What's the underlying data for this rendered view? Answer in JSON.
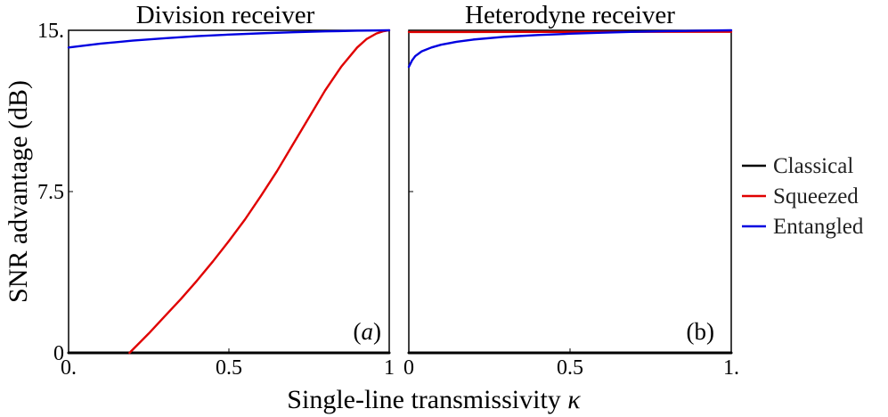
{
  "chart_data": {
    "type": "line",
    "ylabel": "SNR advantage (dB)",
    "xlabel": "Single-line transmissivity κ",
    "ylim": [
      0,
      15
    ],
    "xlim": [
      0,
      1
    ],
    "legend": {
      "placement": "right",
      "entries": [
        {
          "label": "Classical",
          "color": "#000000"
        },
        {
          "label": "Squeezed",
          "color": "#e00000"
        },
        {
          "label": "Entangled",
          "color": "#0000e0"
        }
      ]
    },
    "panels": [
      {
        "title": "Division receiver",
        "tag": "(a)",
        "xticks": [
          "0.",
          "0.5",
          "1"
        ],
        "yticks": [
          "0",
          "7.5",
          "15."
        ],
        "series": [
          {
            "name": "Classical",
            "color": "#000000",
            "x": [
              0,
              1
            ],
            "y": [
              0,
              0
            ]
          },
          {
            "name": "Squeezed",
            "color": "#e00000",
            "x": [
              0.19,
              0.25,
              0.3,
              0.35,
              0.4,
              0.45,
              0.5,
              0.55,
              0.6,
              0.65,
              0.7,
              0.75,
              0.8,
              0.85,
              0.9,
              0.93,
              0.96,
              0.98,
              1.0
            ],
            "y": [
              0,
              0.9,
              1.7,
              2.5,
              3.35,
              4.25,
              5.2,
              6.2,
              7.3,
              8.45,
              9.7,
              10.95,
              12.2,
              13.3,
              14.2,
              14.6,
              14.85,
              14.95,
              15.0
            ]
          },
          {
            "name": "Entangled",
            "color": "#0000e0",
            "x": [
              0,
              0.1,
              0.2,
              0.3,
              0.4,
              0.5,
              0.6,
              0.7,
              0.8,
              0.9,
              1.0
            ],
            "y": [
              14.2,
              14.38,
              14.52,
              14.63,
              14.73,
              14.8,
              14.86,
              14.91,
              14.95,
              14.98,
              15.0
            ]
          }
        ]
      },
      {
        "title": "Heterodyne receiver",
        "tag": "(b)",
        "xticks": [
          "0",
          "0.5",
          "1."
        ],
        "yticks": [],
        "series": [
          {
            "name": "Classical",
            "color": "#000000",
            "x": [
              0,
              1
            ],
            "y": [
              0,
              0
            ]
          },
          {
            "name": "Squeezed",
            "color": "#e00000",
            "x": [
              0,
              1
            ],
            "y": [
              14.92,
              14.93
            ]
          },
          {
            "name": "Entangled",
            "color": "#0000e0",
            "x": [
              0,
              0.005,
              0.01,
              0.02,
              0.04,
              0.07,
              0.1,
              0.15,
              0.2,
              0.3,
              0.4,
              0.5,
              0.6,
              0.7,
              0.8,
              0.9,
              1.0
            ],
            "y": [
              13.3,
              13.45,
              13.6,
              13.8,
              14.02,
              14.2,
              14.33,
              14.47,
              14.57,
              14.7,
              14.78,
              14.84,
              14.89,
              14.93,
              14.96,
              14.98,
              15.0
            ]
          }
        ]
      }
    ]
  }
}
